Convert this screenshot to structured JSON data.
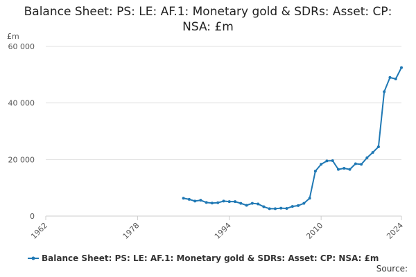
{
  "chart_data": {
    "type": "line",
    "title": "Balance Sheet: PS: LE: AF.1: Monetary gold & SDRs: Asset: CP: NSA: £m",
    "y_label": "£m",
    "source": "Source:",
    "x": [
      1986,
      1987,
      1988,
      1989,
      1990,
      1991,
      1992,
      1993,
      1994,
      1995,
      1996,
      1997,
      1998,
      1999,
      2000,
      2001,
      2002,
      2003,
      2004,
      2005,
      2006,
      2007,
      2008,
      2009,
      2010,
      2011,
      2012,
      2013,
      2014,
      2015,
      2016,
      2017,
      2018,
      2019,
      2020,
      2021,
      2022,
      2023,
      2024
    ],
    "series": [
      {
        "name": "Balance Sheet: PS: LE: AF.1: Monetary gold & SDRs: Asset: CP: NSA: £m",
        "color": "#1f78b4",
        "values": [
          6300,
          5900,
          5300,
          5600,
          4800,
          4600,
          4700,
          5300,
          5100,
          5100,
          4500,
          3800,
          4500,
          4300,
          3300,
          2600,
          2600,
          2800,
          2700,
          3400,
          3700,
          4500,
          6300,
          15900,
          18300,
          19500,
          19600,
          16500,
          16900,
          16500,
          18500,
          18300,
          20600,
          22500,
          24500,
          44000,
          49000,
          48500,
          52500
        ]
      }
    ],
    "xlim": [
      1962,
      2024
    ],
    "xticks": [
      1962,
      1978,
      1994,
      2010,
      2024
    ],
    "ylim": [
      0,
      60000
    ],
    "yticks": [
      0,
      {
        "value": 20000,
        "label": "20 000"
      },
      {
        "value": 40000,
        "label": "40 000"
      },
      {
        "value": 60000,
        "label": "60 000"
      }
    ],
    "grid": true
  }
}
